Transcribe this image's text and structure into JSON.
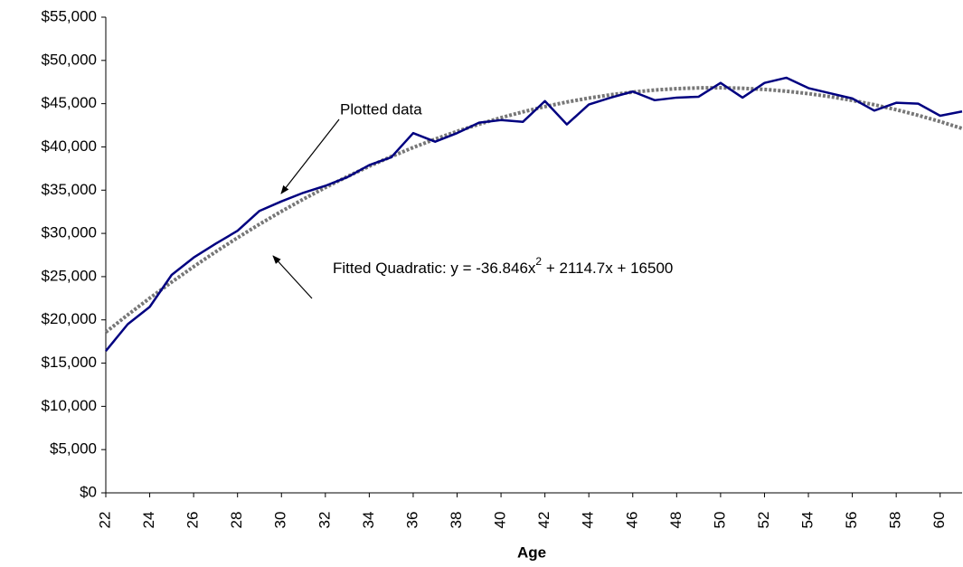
{
  "chart_data": {
    "type": "line",
    "x_label": "Age",
    "x": [
      22,
      23,
      24,
      25,
      26,
      27,
      28,
      29,
      30,
      31,
      32,
      33,
      34,
      35,
      36,
      37,
      38,
      39,
      40,
      41,
      42,
      43,
      44,
      45,
      46,
      47,
      48,
      49,
      50,
      51,
      52,
      53,
      54,
      55,
      56,
      57,
      58,
      59,
      60,
      61
    ],
    "series": [
      {
        "name": "Plotted data",
        "color": "#000080",
        "style": "solid",
        "values": [
          16400,
          19500,
          21500,
          25200,
          27200,
          28800,
          30300,
          32600,
          33700,
          34700,
          35500,
          36500,
          37900,
          38800,
          41600,
          40600,
          41600,
          42800,
          43100,
          42900,
          45300,
          42600,
          44900,
          45700,
          46400,
          45400,
          45700,
          45800,
          47400,
          45700,
          47400,
          48000,
          46800,
          46200,
          45600,
          44200,
          45100,
          45000,
          43600,
          44100
        ]
      },
      {
        "name": "Fitted Quadratic",
        "color": "#777777",
        "style": "dashed",
        "values": [
          18578,
          20582,
          22512,
          24369,
          26152,
          27862,
          29497,
          31060,
          32548,
          33962,
          35303,
          36571,
          37764,
          38884,
          39930,
          40903,
          41801,
          42627,
          43378,
          44056,
          44660,
          45190,
          45647,
          46030,
          46339,
          46574,
          46736,
          46824,
          46839,
          46780,
          46647,
          46440,
          46160,
          45806,
          45378,
          44877,
          44302,
          43653,
          42931,
          42134
        ]
      }
    ],
    "annotations": [
      {
        "text": "Plotted data"
      },
      {
        "text": "Fitted Quadratic:  y = -36.846x",
        "sup": "2",
        "text_after": " + 2114.7x + 16500"
      }
    ],
    "xlim": [
      22,
      61
    ],
    "xticks": [
      22,
      24,
      26,
      28,
      30,
      32,
      34,
      36,
      38,
      40,
      42,
      44,
      46,
      48,
      50,
      52,
      54,
      56,
      58,
      60
    ],
    "ylim": [
      0,
      55000
    ],
    "yticks": [
      {
        "value": 0,
        "label": "$0"
      },
      {
        "value": 5000,
        "label": "$5,000"
      },
      {
        "value": 10000,
        "label": "$10,000"
      },
      {
        "value": 15000,
        "label": "$15,000"
      },
      {
        "value": 20000,
        "label": "$20,000"
      },
      {
        "value": 25000,
        "label": "$25,000"
      },
      {
        "value": 30000,
        "label": "$30,000"
      },
      {
        "value": 35000,
        "label": "$35,000"
      },
      {
        "value": 40000,
        "label": "$40,000"
      },
      {
        "value": 45000,
        "label": "$45,000"
      },
      {
        "value": 50000,
        "label": "$50,000"
      },
      {
        "value": 55000,
        "label": "$55,000"
      }
    ],
    "grid": false
  }
}
